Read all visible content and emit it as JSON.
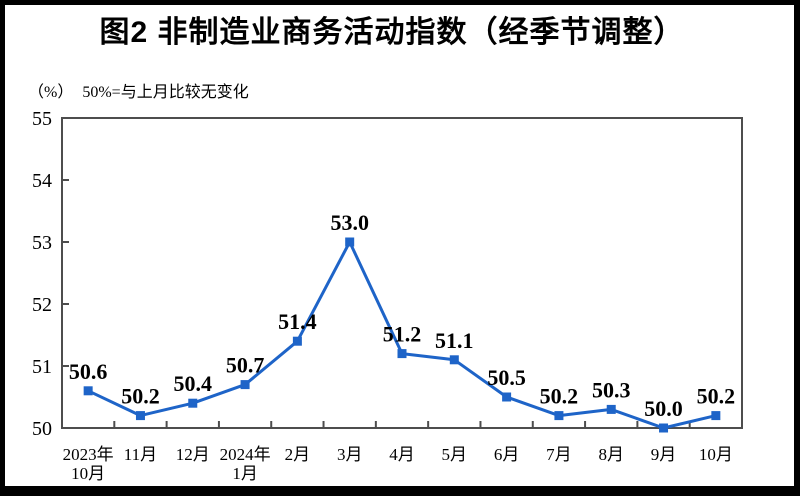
{
  "figure": {
    "title": "图2 非制造业商务活动指数（经季节调整）",
    "unit_label": "（%）",
    "note": "50%=与上月比较无变化"
  },
  "chart_data": {
    "type": "line",
    "title": "图2 非制造业商务活动指数（经季节调整）",
    "annotation": "50%=与上月比较无变化",
    "ylabel": "（%）",
    "xlabel": "",
    "categories": [
      "2023年\n10月",
      "11月",
      "12月",
      "2024年\n1月",
      "2月",
      "3月",
      "4月",
      "5月",
      "6月",
      "7月",
      "8月",
      "9月",
      "10月"
    ],
    "values": [
      50.6,
      50.2,
      50.4,
      50.7,
      51.4,
      53.0,
      51.2,
      51.1,
      50.5,
      50.2,
      50.3,
      50.0,
      50.2
    ],
    "data_labels": [
      "50.6",
      "50.2",
      "50.4",
      "50.7",
      "51.4",
      "53.0",
      "51.2",
      "51.1",
      "50.5",
      "50.2",
      "50.3",
      "50.0",
      "50.2"
    ],
    "ylim": [
      50,
      55
    ],
    "yticks": [
      50,
      51,
      52,
      53,
      54,
      55
    ],
    "grid": false,
    "legend": "none",
    "marker": "square",
    "line_color": "#1E64C8",
    "axis_color": "#4D4D4D",
    "text_color": "#000000",
    "frame_color": "#000000"
  }
}
